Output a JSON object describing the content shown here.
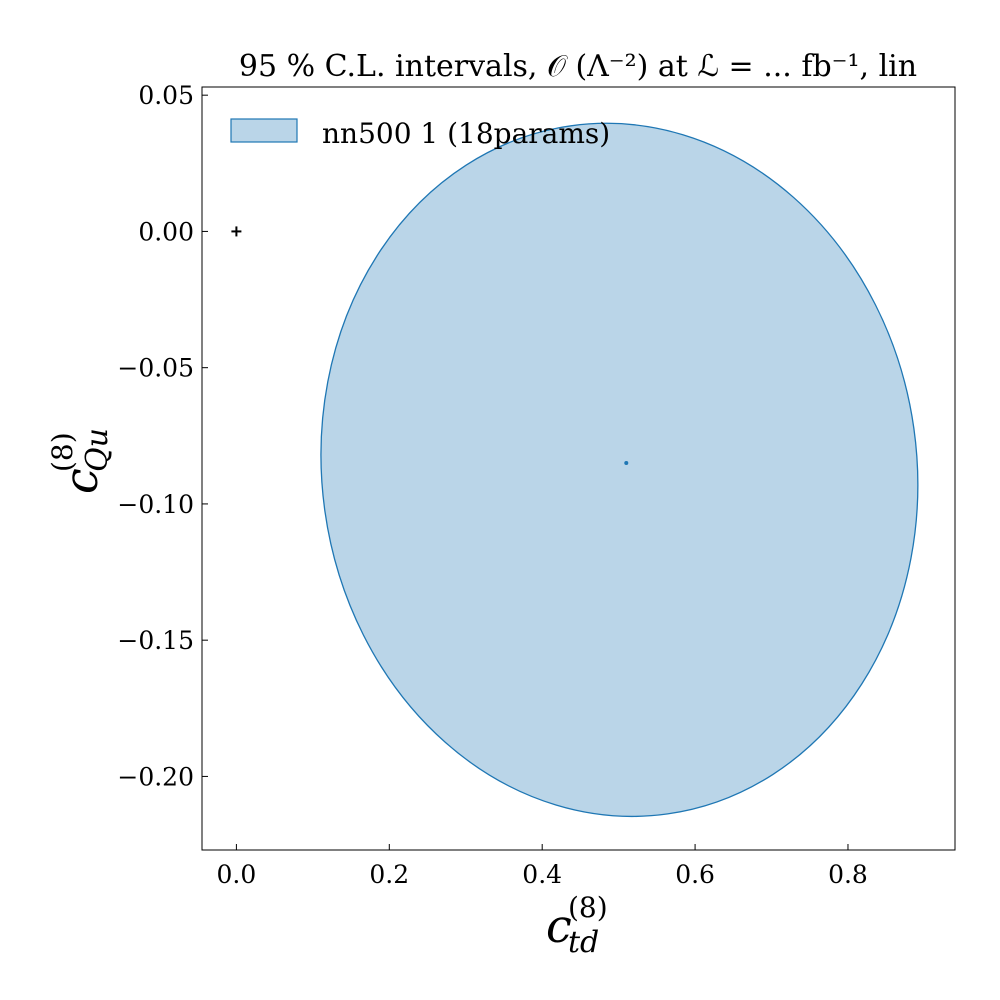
{
  "chart_data": {
    "type": "scatter",
    "title": "95 % C.L. intervals, 𝒪 (Λ⁻²) at ℒ = ... fb⁻¹, lin",
    "xlabel": {
      "main": "c",
      "sup": "(8)",
      "sub": "td"
    },
    "ylabel": {
      "main": "c",
      "sup": "(8)",
      "sub": "Qu"
    },
    "xlim": [
      -0.045,
      0.94
    ],
    "ylim": [
      -0.227,
      0.053
    ],
    "x_ticks": [
      {
        "value": 0.0,
        "label": "0.0"
      },
      {
        "value": 0.2,
        "label": "0.2"
      },
      {
        "value": 0.4,
        "label": "0.4"
      },
      {
        "value": 0.6,
        "label": "0.6"
      },
      {
        "value": 0.8,
        "label": "0.8"
      }
    ],
    "y_ticks": [
      {
        "value": 0.05,
        "label": "0.05"
      },
      {
        "value": 0.0,
        "label": "0.00"
      },
      {
        "value": -0.05,
        "label": "−0.05"
      },
      {
        "value": -0.1,
        "label": "−0.10"
      },
      {
        "value": -0.15,
        "label": "−0.15"
      },
      {
        "value": -0.2,
        "label": "−0.20"
      }
    ],
    "grid": false,
    "legend": {
      "position": "top-left",
      "entries": [
        {
          "label": "nn500 1 (18params)"
        }
      ]
    },
    "series": [
      {
        "name": "nn500 1 (18params)",
        "kind": "confidence-ellipse",
        "confidence_level": 0.95,
        "center": {
          "x": 0.51,
          "y": -0.085
        },
        "bounds": {
          "x": [
            0.112,
            0.89
          ],
          "y": [
            -0.215,
            0.04
          ]
        },
        "fill_color": "#bad5e8",
        "edge_color": "#1f77b4"
      }
    ],
    "reference_point": {
      "x": 0.0,
      "y": 0.0,
      "marker": "+"
    }
  }
}
